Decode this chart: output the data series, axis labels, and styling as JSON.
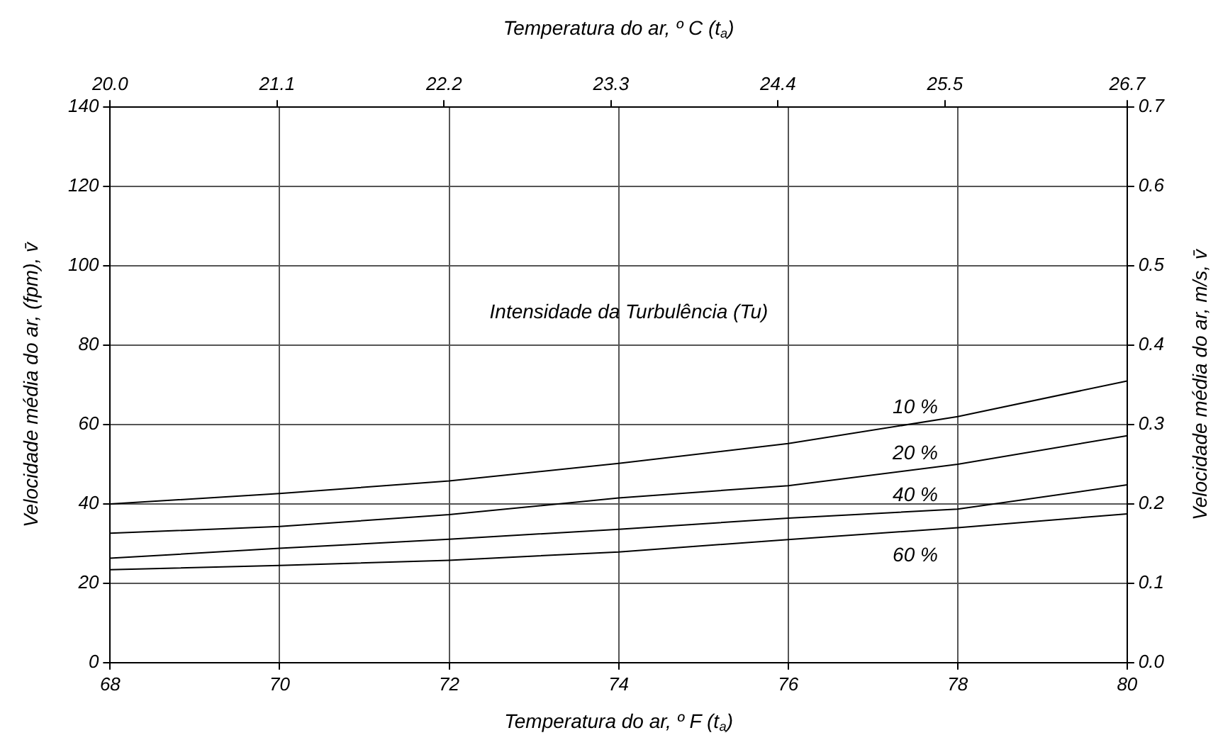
{
  "chart_data": {
    "type": "line",
    "xlabel": "Temperatura do ar, º F (t$_{a}$)",
    "x2label": "Temperatura do ar, º C (t$_{a}$)",
    "ylabel": "Velocidade média do ar, (fpm), v̄",
    "y2label": "Velocidade média do ar, m/s, v̄",
    "x": [
      68,
      70,
      72,
      74,
      76,
      78,
      80
    ],
    "series": [
      {
        "name": "10 %",
        "color": "#000000",
        "values": [
          40,
          42.6,
          45.8,
          50.2,
          55.2,
          62,
          71
        ]
      },
      {
        "name": "20 %",
        "color": "#000000",
        "values": [
          32.6,
          34.3,
          37.3,
          41.5,
          44.6,
          50,
          57.2
        ]
      },
      {
        "name": "40 %",
        "color": "#000000",
        "values": [
          26.3,
          28.8,
          31.1,
          33.6,
          36.4,
          38.7,
          44.8
        ]
      },
      {
        "name": "60 %",
        "color": "#000000",
        "values": [
          23.4,
          24.5,
          25.8,
          27.9,
          31,
          34,
          37.5
        ]
      }
    ],
    "xlim": [
      68,
      80
    ],
    "xticks": [
      68,
      70,
      72,
      74,
      76,
      78,
      80
    ],
    "x2lim": [
      20,
      26.7
    ],
    "x2ticks": [
      {
        "value": 20,
        "label": "20.0"
      },
      21.1,
      22.2,
      23.3,
      24.4,
      25.5,
      26.7
    ],
    "ylim": [
      0,
      140
    ],
    "yticks": [
      0,
      20,
      40,
      60,
      80,
      100,
      120,
      140
    ],
    "y2lim": [
      0,
      0.7
    ],
    "y2ticks": [
      {
        "value": 0,
        "label": "0.0"
      },
      0.1,
      0.2,
      0.3,
      0.4,
      0.5,
      0.6,
      0.7
    ],
    "annotations": [
      "Intensidade da Turbulência (Tu)"
    ],
    "grid": true,
    "legend": false,
    "marker": "none",
    "line_style": "solid"
  }
}
